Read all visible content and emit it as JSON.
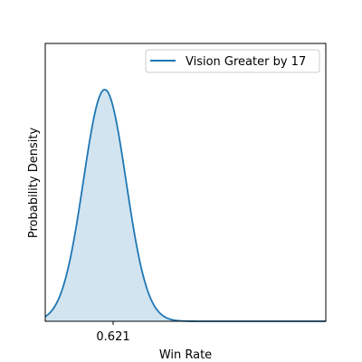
{
  "chart_data": {
    "type": "area",
    "title": "",
    "xlabel": "Win Rate",
    "ylabel": "Probability Density",
    "x_ticks": [
      0.621
    ],
    "x_tick_labels": [
      "0.621"
    ],
    "y_ticks_shown": false,
    "xlim": [
      0.5,
      1.0
    ],
    "grid": false,
    "legend_position": "top-right",
    "series": [
      {
        "name": "Vision Greater by 17",
        "distribution": "approximately normal",
        "mode": 0.606,
        "sd": 0.038,
        "color": "#1f77b4",
        "fill_color": "#1f77b4",
        "fill_opacity": 0.2
      }
    ]
  }
}
